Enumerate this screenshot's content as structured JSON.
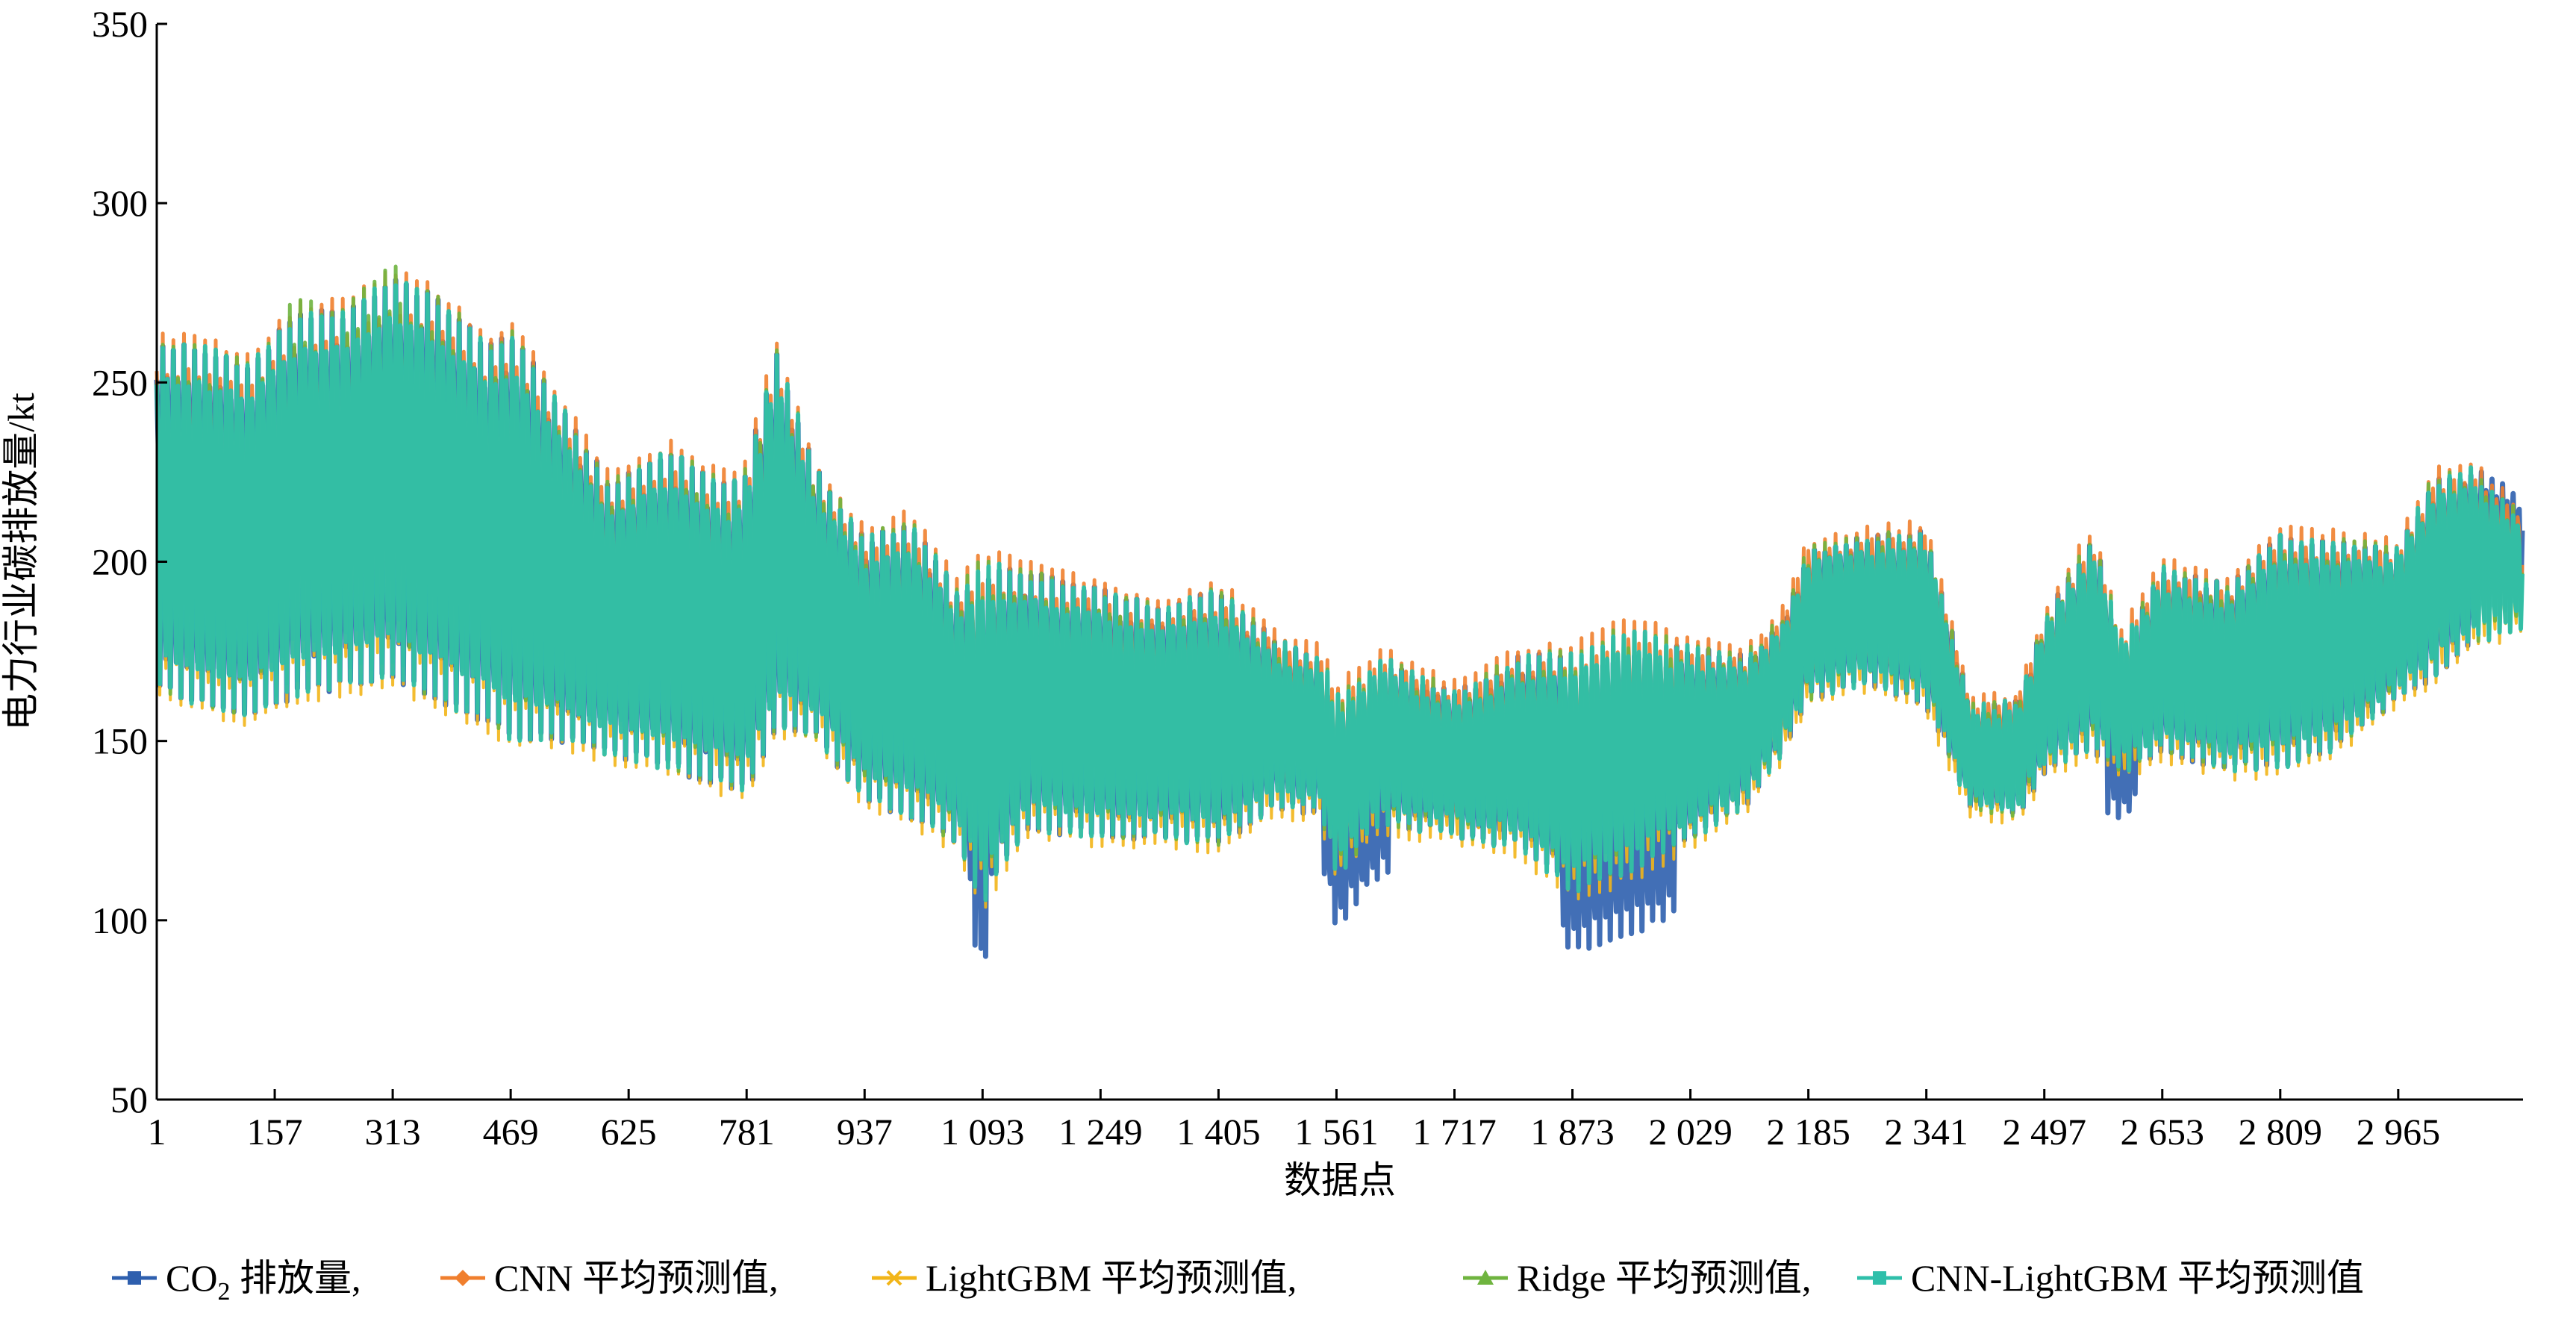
{
  "chart_data": {
    "type": "line",
    "title": "",
    "xlabel": "数据点",
    "ylabel": "电力行业碳排放量/kt",
    "xlim": [
      1,
      3130
    ],
    "ylim": [
      50,
      350
    ],
    "xticks": [
      1,
      157,
      313,
      469,
      625,
      781,
      937,
      1093,
      1249,
      1405,
      1561,
      1717,
      1873,
      2029,
      2185,
      2341,
      2497,
      2653,
      2809,
      2965
    ],
    "xtick_labels": [
      "1",
      "157",
      "313",
      "469",
      "625",
      "781",
      "937",
      "1 093",
      "1 249",
      "1 405",
      "1 561",
      "1 717",
      "1 873",
      "2 029",
      "2 185",
      "2 341",
      "2 497",
      "2 653",
      "2 809",
      "2 965"
    ],
    "yticks": [
      50,
      100,
      150,
      200,
      250,
      300,
      350
    ],
    "ytick_labels": [
      "50",
      "100",
      "150",
      "200",
      "250",
      "300",
      "350"
    ],
    "grid": false,
    "legend_position": "bottom",
    "series": [
      {
        "name": "CO2 排放量",
        "legend_main": "CO",
        "legend_sub": "2",
        "legend_rest": " 排放量,",
        "color": "#2e5fae",
        "marker": "square"
      },
      {
        "name": "CNN 平均预测值",
        "legend_label": "CNN 平均预测值,",
        "color": "#f07f2e",
        "marker": "diamond"
      },
      {
        "name": "LightGBM 平均预测值",
        "legend_label": "LightGBM 平均预测值,",
        "color": "#f2b518",
        "marker": "x"
      },
      {
        "name": "Ridge 平均预测值",
        "legend_label": "Ridge 平均预测值,",
        "color": "#6fb43f",
        "marker": "triangle"
      },
      {
        "name": "CNN-LightGBM 平均预测值",
        "legend_label": "CNN-LightGBM 平均预测值",
        "color": "#2fbfaa",
        "marker": "square"
      }
    ],
    "envelope_note": "Each series oscillates with a roughly weekly period between a lower and upper envelope (kt) sampled at the x anchors below.",
    "envelope": {
      "x": [
        1,
        60,
        120,
        190,
        250,
        313,
        380,
        440,
        469,
        530,
        600,
        680,
        760,
        781,
        820,
        870,
        937,
        1000,
        1060,
        1093,
        1150,
        1249,
        1330,
        1405,
        1480,
        1540,
        1561,
        1620,
        1717,
        1800,
        1873,
        1950,
        2029,
        2100,
        2150,
        2185,
        2260,
        2341,
        2400,
        2460,
        2497,
        2560,
        2600,
        2653,
        2740,
        2809,
        2880,
        2965,
        3010,
        3060,
        3120
      ],
      "lower": [
        160,
        155,
        152,
        158,
        160,
        162,
        155,
        150,
        145,
        146,
        143,
        138,
        133,
        132,
        148,
        148,
        130,
        125,
        118,
        100,
        122,
        120,
        120,
        118,
        130,
        128,
        110,
        125,
        122,
        118,
        105,
        110,
        120,
        130,
        145,
        160,
        165,
        158,
        130,
        128,
        140,
        145,
        140,
        145,
        140,
        140,
        145,
        160,
        165,
        175,
        180
      ],
      "upper": [
        265,
        265,
        260,
        275,
        275,
        285,
        278,
        265,
        270,
        250,
        225,
        235,
        225,
        230,
        265,
        230,
        210,
        215,
        195,
        205,
        200,
        195,
        190,
        195,
        180,
        175,
        165,
        175,
        165,
        175,
        178,
        185,
        178,
        175,
        185,
        205,
        208,
        210,
        160,
        162,
        185,
        210,
        180,
        200,
        195,
        210,
        208,
        205,
        225,
        228,
        215
      ]
    },
    "deviations": [
      {
        "series": "CO2 排放量",
        "note": "actual values dip to ~100 at x≈1093, ~110 around x≈1561-1600, ~100-120 around x≈1873-2000, ~125 near x≈2600, and peak ~232 at x≈3100"
      },
      {
        "series": "Ridge 平均预测值",
        "note": "peak ~290 near x≈313 and ~280 near x≈190"
      },
      {
        "series": "CNN 平均预测值",
        "note": "slightly higher peaks at ~275 near x≈469 and ~207 near x≈1093"
      }
    ]
  }
}
